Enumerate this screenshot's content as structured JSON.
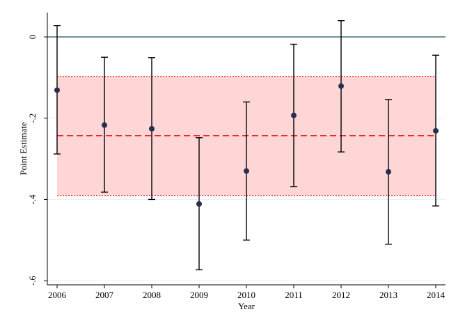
{
  "chart_data": {
    "type": "scatter",
    "title": "",
    "xlabel": "Year",
    "ylabel": "Point Estimate",
    "x_ticks": [
      "2006",
      "2007",
      "2008",
      "2009",
      "2010",
      "2011",
      "2012",
      "2013",
      "2014"
    ],
    "y_ticks": [
      {
        "value": 0,
        "label": "0"
      },
      {
        "value": -0.2,
        "label": "-.2"
      },
      {
        "value": -0.4,
        "label": "-.4"
      },
      {
        "value": -0.6,
        "label": "-.6"
      }
    ],
    "xlim": [
      2006,
      2014
    ],
    "ylim": [
      -0.61,
      0.06
    ],
    "points": [
      {
        "x": 2006,
        "y": -0.131,
        "ci_low": -0.288,
        "ci_high": 0.028
      },
      {
        "x": 2007,
        "y": -0.217,
        "ci_low": -0.382,
        "ci_high": -0.05
      },
      {
        "x": 2008,
        "y": -0.226,
        "ci_low": -0.4,
        "ci_high": -0.051
      },
      {
        "x": 2009,
        "y": -0.411,
        "ci_low": -0.573,
        "ci_high": -0.248
      },
      {
        "x": 2010,
        "y": -0.33,
        "ci_low": -0.5,
        "ci_high": -0.16
      },
      {
        "x": 2011,
        "y": -0.193,
        "ci_low": -0.368,
        "ci_high": -0.018
      },
      {
        "x": 2012,
        "y": -0.121,
        "ci_low": -0.283,
        "ci_high": 0.04
      },
      {
        "x": 2013,
        "y": -0.332,
        "ci_low": -0.51,
        "ci_high": -0.154
      },
      {
        "x": 2014,
        "y": -0.231,
        "ci_low": -0.416,
        "ci_high": -0.045
      }
    ],
    "reference_line": {
      "y": 0,
      "color": "#1f4e5a"
    },
    "pooled_estimate": {
      "y": -0.243,
      "ci_low": -0.39,
      "ci_high": -0.097
    },
    "grid": true,
    "colors": {
      "point": "#2b2d4f",
      "error_bar": "#000000",
      "band_fill": "#ffd6d6",
      "band_line": "#e8272e",
      "grid": "#eaf0f4",
      "frame": "#000000"
    }
  }
}
